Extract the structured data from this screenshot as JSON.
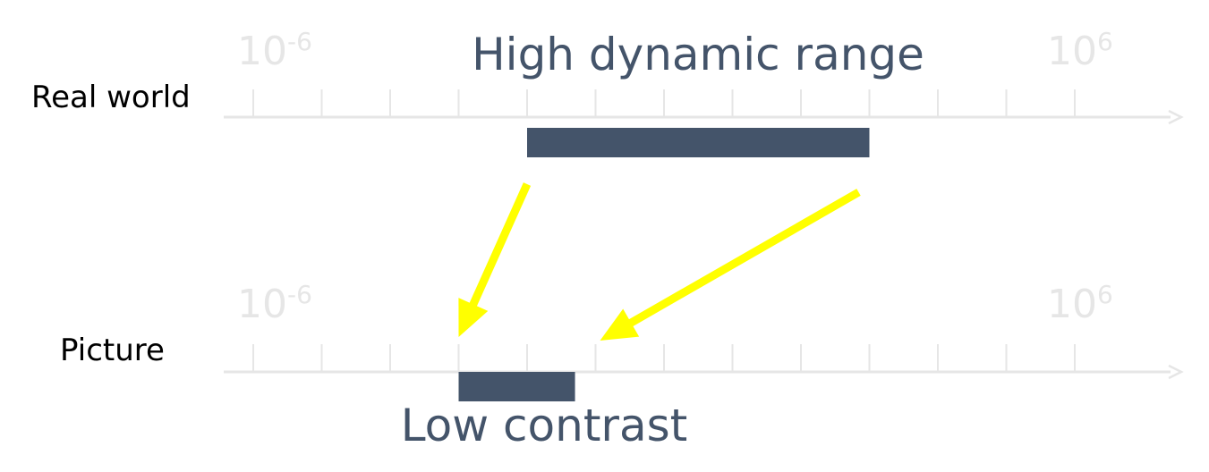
{
  "rows": [
    {
      "label": "Real world",
      "caption": "High dynamic range",
      "scale_min": {
        "base": "10",
        "exp": "-6"
      },
      "scale_max": {
        "base": "10",
        "exp": "6"
      },
      "range_span": [
        4,
        9
      ]
    },
    {
      "label": "Picture",
      "caption": "Low contrast",
      "scale_min": {
        "base": "10",
        "exp": "-6"
      },
      "scale_max": {
        "base": "10",
        "exp": "6"
      },
      "range_span": [
        3,
        4.7
      ]
    }
  ],
  "axis_ticks": 13,
  "mapping_arrows": [
    {
      "from": "real-world-range-start",
      "to": "picture-range-start"
    },
    {
      "from": "real-world-range-end",
      "to": "picture-range-end"
    }
  ],
  "colors": {
    "axis": "#e6e6e6",
    "range_bar": "#44546a",
    "arrow": "#ffff00",
    "caption": "#44546a",
    "label": "#000000"
  }
}
